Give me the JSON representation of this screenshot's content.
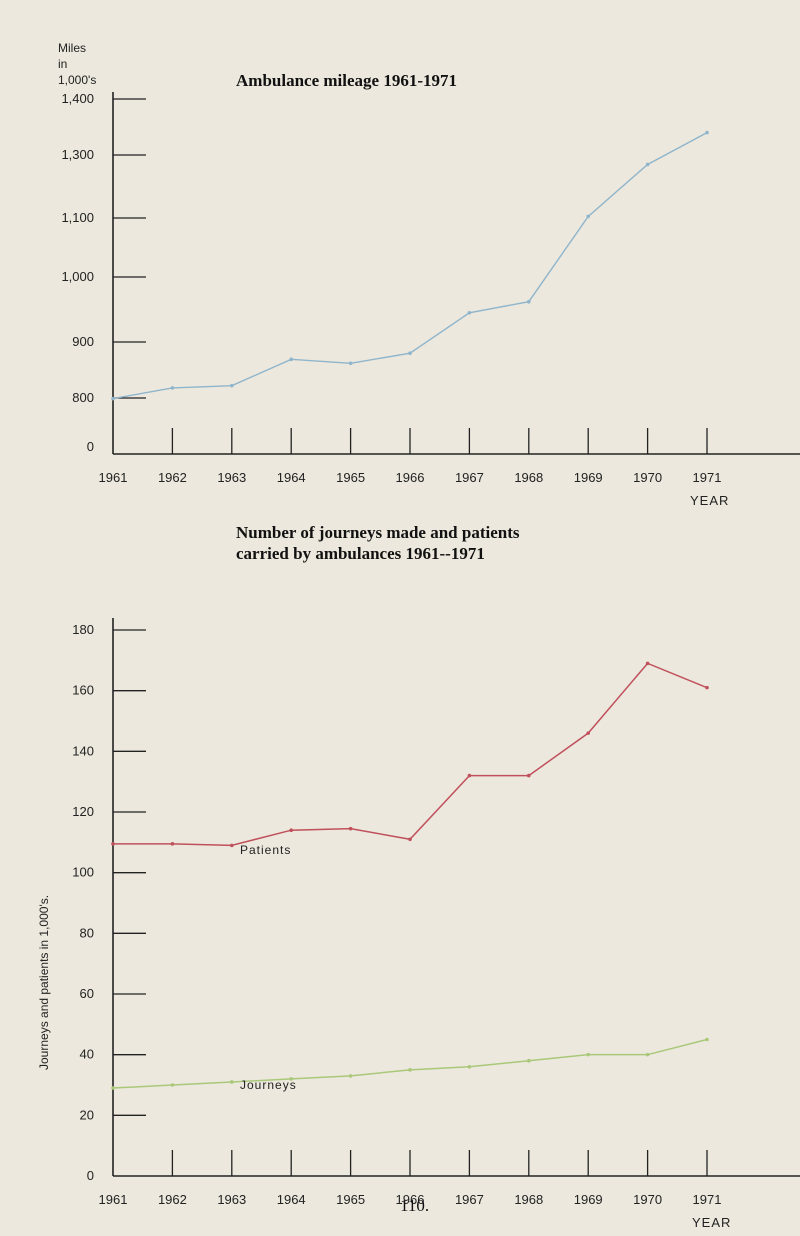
{
  "page_number": "110.",
  "chart_data": [
    {
      "type": "line",
      "title": "Ambulance mileage 1961-1971",
      "ylabel_lines": [
        "Miles",
        "in",
        "1,000's"
      ],
      "xlabel": "YEAR",
      "categories": [
        "1961",
        "1962",
        "1963",
        "1964",
        "1965",
        "1966",
        "1967",
        "1968",
        "1969",
        "1970",
        "1971"
      ],
      "x_tick_labels": [
        "1961",
        "1962",
        "1963",
        "1964",
        "1965",
        "1966",
        "1967",
        "1968",
        "1969",
        "1970",
        "1971"
      ],
      "y_ticks": [
        0,
        800,
        900,
        1000,
        1100,
        1300,
        1400
      ],
      "y_tick_labels": [
        "0",
        "800",
        "900",
        "1,000",
        "1,100",
        "1,300",
        "1,400"
      ],
      "series": [
        {
          "x": [
            1961,
            1962,
            1963,
            1964,
            1965,
            1966,
            1967,
            1968,
            1969,
            1970,
            1971
          ],
          "values": [
            790,
            818,
            822,
            869,
            862,
            880,
            945,
            962,
            1105,
            1270,
            1340
          ]
        }
      ],
      "color": "#8fb5cc"
    },
    {
      "type": "line",
      "title": "Number of journeys made and patients carried by ambulances 1961--1971",
      "ylabel": "Journeys and patients in 1,000's.",
      "xlabel": "YEAR",
      "categories": [
        "1961",
        "1962",
        "1963",
        "1964",
        "1965",
        "1966",
        "1967",
        "1968",
        "1969",
        "1970",
        "1971"
      ],
      "x_tick_labels": [
        "1961",
        "1962",
        "1963",
        "1964",
        "1965",
        "1966",
        "1967",
        "1968",
        "1969",
        "1970",
        "1971"
      ],
      "y_ticks": [
        0,
        20,
        40,
        60,
        80,
        100,
        120,
        140,
        160,
        180
      ],
      "y_tick_labels": [
        "0",
        "20",
        "40",
        "60",
        "80",
        "100",
        "120",
        "140",
        "160",
        "180"
      ],
      "series": [
        {
          "name": "Patients",
          "x": [
            1961,
            1962,
            1963,
            1964,
            1965,
            1966,
            1967,
            1968,
            1969,
            1970,
            1971
          ],
          "values": [
            109.5,
            109.5,
            109,
            114,
            114.5,
            111,
            132,
            132,
            146,
            169,
            161
          ],
          "color": "#c0505c"
        },
        {
          "name": "Journeys",
          "x": [
            1961,
            1962,
            1963,
            1964,
            1965,
            1966,
            1967,
            1968,
            1969,
            1970,
            1971
          ],
          "values": [
            29,
            30,
            31,
            32,
            33,
            35,
            36,
            38,
            40,
            40,
            45
          ],
          "color": "#a9c879"
        }
      ]
    }
  ]
}
